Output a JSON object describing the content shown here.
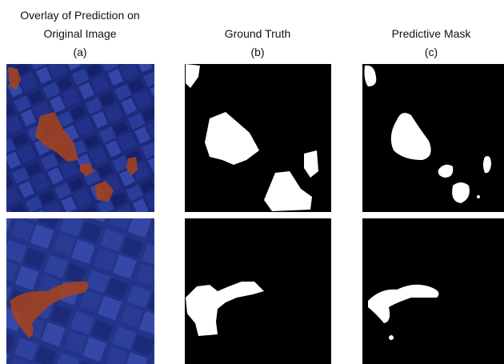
{
  "columns": [
    {
      "title_lines": [
        "Overlay of Prediction on",
        "Original Image"
      ],
      "label": "(a)"
    },
    {
      "title_lines": [
        "Ground Truth"
      ],
      "label": "(b)"
    },
    {
      "title_lines": [
        "Predictive Mask"
      ],
      "label": "(c)"
    }
  ]
}
